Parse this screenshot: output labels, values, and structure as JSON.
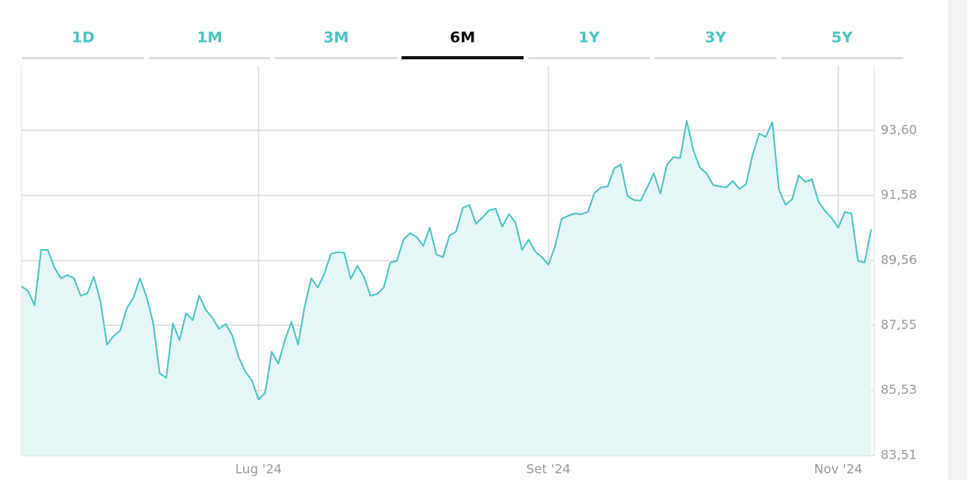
{
  "tabs": {
    "items": [
      "1D",
      "1M",
      "3M",
      "6M",
      "1Y",
      "3Y",
      "5Y"
    ],
    "active_index": 3
  },
  "chart_data": {
    "type": "line",
    "color": "#4cc3c3",
    "fill_color": "#e5f6f6",
    "grid": true,
    "categories": [
      null,
      null,
      null,
      null,
      null,
      null,
      null,
      null,
      null,
      null,
      null,
      null,
      null,
      null,
      null,
      null,
      null,
      null,
      null,
      null,
      null,
      null,
      null,
      null,
      null,
      null,
      null,
      null,
      null,
      null,
      null,
      null,
      null,
      null,
      null,
      null,
      "Lug '24",
      null,
      null,
      null,
      null,
      null,
      null,
      null,
      null,
      null,
      null,
      null,
      null,
      null,
      null,
      null,
      null,
      null,
      null,
      null,
      null,
      null,
      null,
      null,
      null,
      null,
      null,
      null,
      null,
      null,
      null,
      null,
      null,
      null,
      null,
      null,
      null,
      null,
      null,
      null,
      null,
      null,
      null,
      null,
      "Set '24",
      null,
      null,
      null,
      null,
      null,
      null,
      null,
      null,
      null,
      null,
      null,
      null,
      null,
      null,
      null,
      null,
      null,
      null,
      null,
      null,
      null,
      null,
      null,
      null,
      null,
      null,
      null,
      null,
      null,
      null,
      null,
      null,
      null,
      null,
      null,
      null,
      null,
      null,
      null,
      null,
      null,
      null,
      null,
      "Nov '24",
      null,
      null,
      null,
      null,
      null
    ],
    "values": [
      88.76,
      88.62,
      88.17,
      89.89,
      89.89,
      89.35,
      89.01,
      89.11,
      89.01,
      88.47,
      88.54,
      89.06,
      88.3,
      86.95,
      87.22,
      87.39,
      88.08,
      88.4,
      89.01,
      88.44,
      87.63,
      86.06,
      85.92,
      87.61,
      87.09,
      87.93,
      87.71,
      88.47,
      88.03,
      87.78,
      87.44,
      87.59,
      87.24,
      86.55,
      86.11,
      85.84,
      85.25,
      85.45,
      86.73,
      86.36,
      87.09,
      87.66,
      86.95,
      88.13,
      89.01,
      88.72,
      89.16,
      89.77,
      89.82,
      89.8,
      88.99,
      89.4,
      89.06,
      88.47,
      88.52,
      88.72,
      89.5,
      89.55,
      90.21,
      90.41,
      90.29,
      90.02,
      90.58,
      89.75,
      89.67,
      90.34,
      90.46,
      91.19,
      91.29,
      90.7,
      90.9,
      91.12,
      91.17,
      90.61,
      91.0,
      90.75,
      89.89,
      90.21,
      89.84,
      89.67,
      89.43,
      89.99,
      90.85,
      90.95,
      91.02,
      91.0,
      91.07,
      91.66,
      91.83,
      91.86,
      92.42,
      92.54,
      91.56,
      91.44,
      91.42,
      91.83,
      92.27,
      91.64,
      92.54,
      92.77,
      92.74,
      93.9,
      92.99,
      92.45,
      92.27,
      91.91,
      91.86,
      91.83,
      92.03,
      91.78,
      91.93,
      92.84,
      93.5,
      93.4,
      93.85,
      91.76,
      91.29,
      91.46,
      92.2,
      92.0,
      92.08,
      91.39,
      91.1,
      90.88,
      90.58,
      91.07,
      91.02,
      89.55,
      89.5,
      90.53
    ],
    "ylim": [
      83.51,
      95.61
    ],
    "yticks": [
      {
        "value": 83.51,
        "label": "83,51"
      },
      {
        "value": 85.53,
        "label": "85,53"
      },
      {
        "value": 87.55,
        "label": "87,55"
      },
      {
        "value": 89.56,
        "label": "89,56"
      },
      {
        "value": 91.58,
        "label": "91,58"
      },
      {
        "value": 93.6,
        "label": "93,60"
      }
    ]
  }
}
